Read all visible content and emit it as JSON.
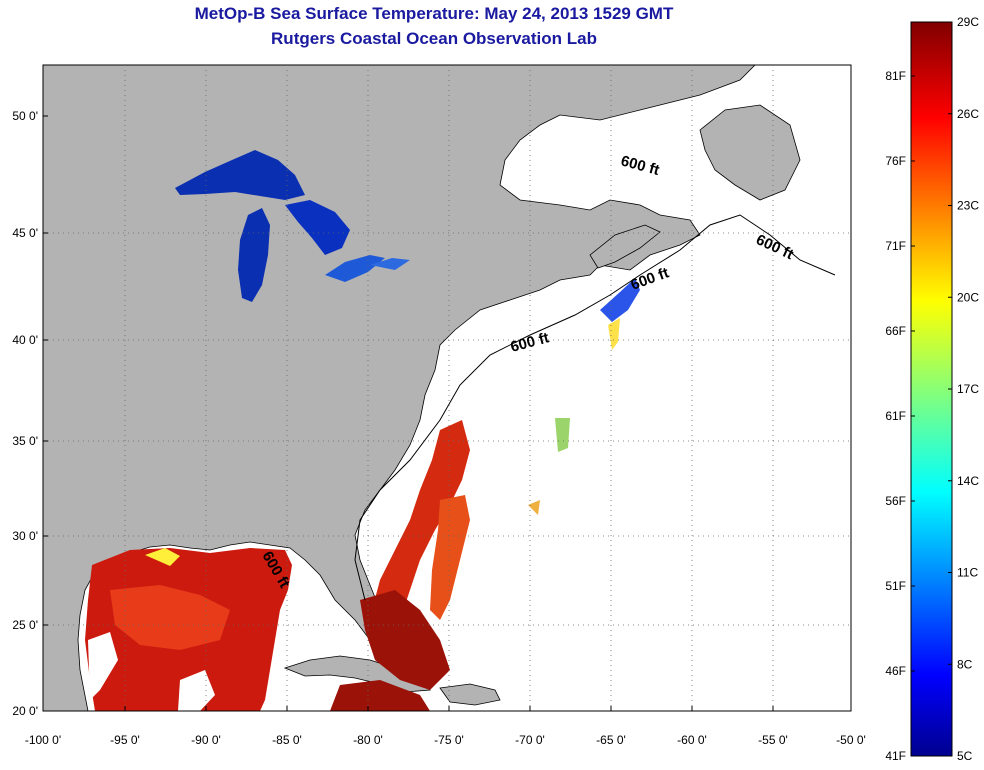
{
  "title": "MetOp-B Sea Surface Temperature:  May 24, 2013 1529 GMT",
  "subtitle": "Rutgers Coastal Ocean Observation Lab",
  "map": {
    "lat_labels": [
      "50 0'",
      "45 0'",
      "40 0'",
      "35 0'",
      "30 0'",
      "25 0'",
      "20 0'"
    ],
    "lon_labels": [
      "-100 0'",
      "-95 0'",
      "-90 0'",
      "-85 0'",
      "-80 0'",
      "-75 0'",
      "-70 0'",
      "-65 0'",
      "-60 0'",
      "-55 0'",
      "-50 0'"
    ],
    "contour_labels": [
      "600 ft",
      "600 ft",
      "600 ft",
      "600 ft",
      "600 ft"
    ],
    "land_color": "#b3b3b3",
    "ocean_color": "#ffffff"
  },
  "colorbar": {
    "celsius": [
      "29C",
      "26C",
      "23C",
      "20C",
      "17C",
      "14C",
      "11C",
      "8C",
      "5C"
    ],
    "fahrenheit": [
      "81F",
      "76F",
      "71F",
      "66F",
      "61F",
      "56F",
      "51F",
      "46F",
      "41F"
    ],
    "colormap": "jet"
  }
}
